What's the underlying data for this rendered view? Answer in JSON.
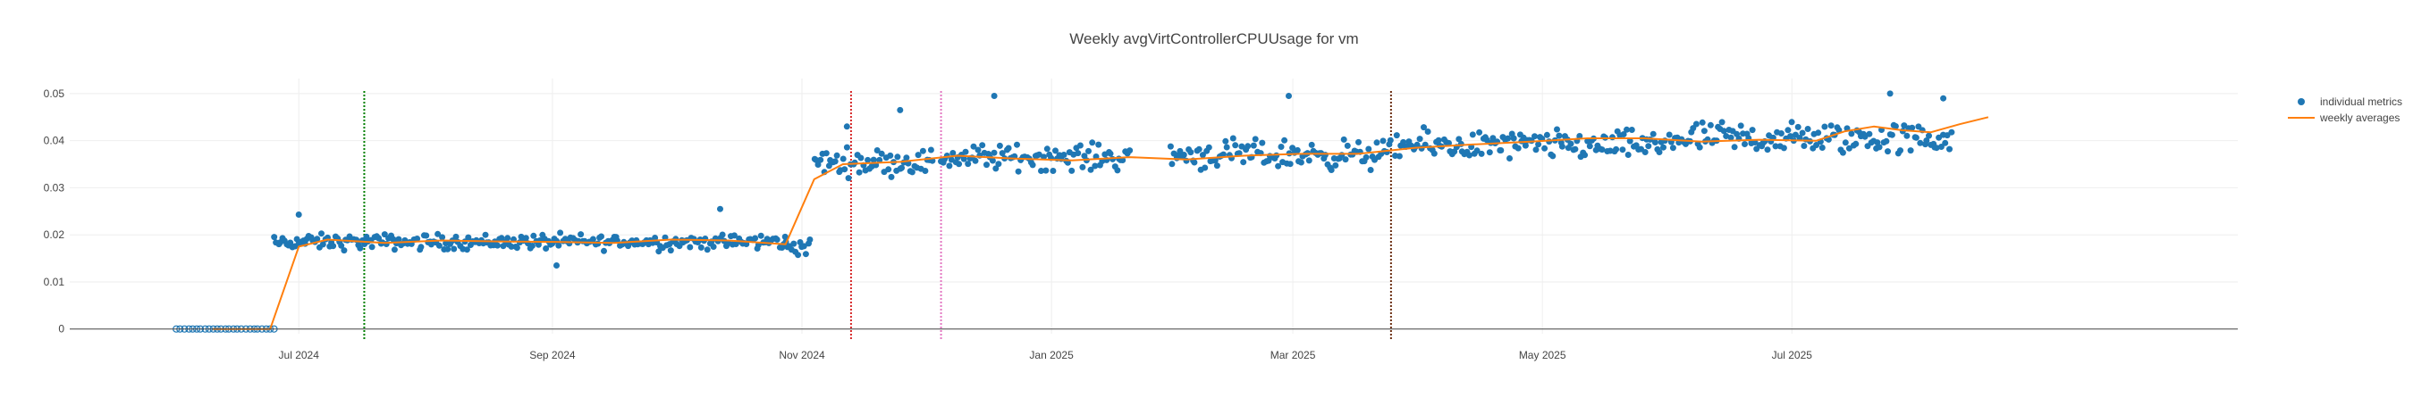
{
  "chart_data": {
    "type": "scatter",
    "title": "Weekly avgVirtControllerCPUUsage for vm",
    "xlabel": "",
    "ylabel": "",
    "x_range": [
      "2024-05-06",
      "2025-10-18"
    ],
    "ylim": [
      -0.001,
      0.0532
    ],
    "y_ticks": [
      {
        "value": 0,
        "label": "0"
      },
      {
        "value": 0.01,
        "label": "0.01"
      },
      {
        "value": 0.02,
        "label": "0.02"
      },
      {
        "value": 0.03,
        "label": "0.03"
      },
      {
        "value": 0.04,
        "label": "0.04"
      },
      {
        "value": 0.05,
        "label": "0.05"
      }
    ],
    "x_ticks": [
      {
        "date": "2024-07-01",
        "label": "Jul 2024"
      },
      {
        "date": "2024-09-01",
        "label": "Sep 2024"
      },
      {
        "date": "2024-11-01",
        "label": "Nov 2024"
      },
      {
        "date": "2025-01-01",
        "label": "Jan 2025"
      },
      {
        "date": "2025-03-01",
        "label": "Mar 2025"
      },
      {
        "date": "2025-05-01",
        "label": "May 2025"
      },
      {
        "date": "2025-07-01",
        "label": "Jul 2025"
      }
    ],
    "grid": true,
    "legend_position": "top-right",
    "legend": [
      {
        "label": "individual metrics",
        "kind": "marker",
        "color": "#1f77b4"
      },
      {
        "label": "weekly averages",
        "kind": "line",
        "color": "#ff7f0e"
      }
    ],
    "vertical_lines": [
      {
        "date": "2024-07-17",
        "color": "#008000",
        "style": "dotted"
      },
      {
        "date": "2024-11-13",
        "color": "#d62728",
        "style": "dotted"
      },
      {
        "date": "2024-12-05",
        "color": "#e377c2",
        "style": "dotted"
      },
      {
        "date": "2025-03-25",
        "color": "#6b2d0f",
        "style": "dotted"
      }
    ],
    "individual_metrics": {
      "name": "individual metrics",
      "color": "#1f77b4",
      "segments": [
        {
          "start": "2024-06-01",
          "end": "2024-06-25",
          "per_day": 1,
          "center": 0.0,
          "spread": 0.0
        },
        {
          "start": "2024-06-25",
          "end": "2024-10-28",
          "per_day": 2,
          "center": 0.0185,
          "spread": 0.0015
        },
        {
          "start": "2024-10-28",
          "end": "2024-11-03",
          "per_day": 2,
          "center": 0.0175,
          "spread": 0.0018
        },
        {
          "start": "2024-11-04",
          "end": "2024-12-03",
          "per_day": 2,
          "center": 0.0355,
          "spread": 0.0025
        },
        {
          "start": "2024-12-05",
          "end": "2025-01-20",
          "per_day": 2,
          "center": 0.0365,
          "spread": 0.0025
        },
        {
          "start": "2025-01-30",
          "end": "2025-03-25",
          "per_day": 2,
          "center": 0.037,
          "spread": 0.0028
        },
        {
          "start": "2025-03-26",
          "end": "2025-05-31",
          "per_day": 2,
          "center": 0.039,
          "spread": 0.0028
        },
        {
          "start": "2025-06-01",
          "end": "2025-08-09",
          "per_day": 2,
          "center": 0.0405,
          "spread": 0.0032
        }
      ],
      "outliers": [
        {
          "date": "2024-07-01",
          "value": 0.0243
        },
        {
          "date": "2024-09-02",
          "value": 0.0135
        },
        {
          "date": "2024-10-12",
          "value": 0.0255
        },
        {
          "date": "2024-11-12",
          "value": 0.043
        },
        {
          "date": "2024-11-25",
          "value": 0.0465
        },
        {
          "date": "2024-12-18",
          "value": 0.0495
        },
        {
          "date": "2025-02-28",
          "value": 0.0495
        },
        {
          "date": "2025-07-25",
          "value": 0.05
        },
        {
          "date": "2025-08-07",
          "value": 0.049
        }
      ]
    },
    "weekly_averages": {
      "name": "weekly averages",
      "color": "#ff7f0e",
      "points": [
        {
          "date": "2024-06-10",
          "value": 0.0
        },
        {
          "date": "2024-06-24",
          "value": 0.0
        },
        {
          "date": "2024-07-01",
          "value": 0.0175
        },
        {
          "date": "2024-07-08",
          "value": 0.019
        },
        {
          "date": "2024-07-22",
          "value": 0.0183
        },
        {
          "date": "2024-08-05",
          "value": 0.0188
        },
        {
          "date": "2024-08-19",
          "value": 0.0186
        },
        {
          "date": "2024-09-02",
          "value": 0.0185
        },
        {
          "date": "2024-09-16",
          "value": 0.0183
        },
        {
          "date": "2024-09-30",
          "value": 0.019
        },
        {
          "date": "2024-10-14",
          "value": 0.0188
        },
        {
          "date": "2024-10-28",
          "value": 0.018
        },
        {
          "date": "2024-11-04",
          "value": 0.0318
        },
        {
          "date": "2024-11-11",
          "value": 0.035
        },
        {
          "date": "2024-11-25",
          "value": 0.0355
        },
        {
          "date": "2024-12-09",
          "value": 0.0368
        },
        {
          "date": "2024-12-23",
          "value": 0.0362
        },
        {
          "date": "2025-01-06",
          "value": 0.0358
        },
        {
          "date": "2025-01-20",
          "value": 0.0365
        },
        {
          "date": "2025-02-03",
          "value": 0.036
        },
        {
          "date": "2025-02-17",
          "value": 0.0368
        },
        {
          "date": "2025-03-03",
          "value": 0.0372
        },
        {
          "date": "2025-03-17",
          "value": 0.0372
        },
        {
          "date": "2025-03-31",
          "value": 0.0385
        },
        {
          "date": "2025-04-14",
          "value": 0.0392
        },
        {
          "date": "2025-04-28",
          "value": 0.0398
        },
        {
          "date": "2025-05-12",
          "value": 0.0405
        },
        {
          "date": "2025-05-26",
          "value": 0.0405
        },
        {
          "date": "2025-06-09",
          "value": 0.0398
        },
        {
          "date": "2025-06-23",
          "value": 0.0402
        },
        {
          "date": "2025-07-07",
          "value": 0.04
        },
        {
          "date": "2025-07-14",
          "value": 0.042
        },
        {
          "date": "2025-07-21",
          "value": 0.043
        },
        {
          "date": "2025-07-28",
          "value": 0.0422
        },
        {
          "date": "2025-08-04",
          "value": 0.0418
        },
        {
          "date": "2025-08-11",
          "value": 0.0435
        },
        {
          "date": "2025-08-18",
          "value": 0.045
        }
      ]
    }
  }
}
